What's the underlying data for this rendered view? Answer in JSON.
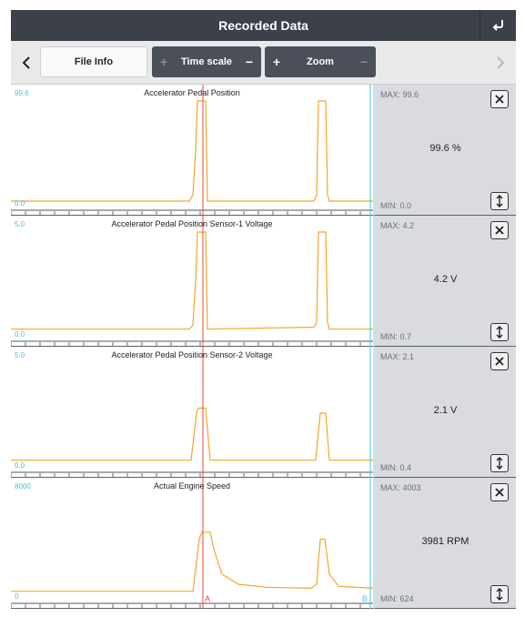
{
  "header": {
    "title": "Recorded Data",
    "back_icon": "return-arrow-icon"
  },
  "toolbar": {
    "file_info_label": "File Info",
    "time_scale_label": "Time scale",
    "zoom_label": "Zoom",
    "plus": "+",
    "minus": "−"
  },
  "colors": {
    "trace": "#f5a623",
    "cursor": "#e84a3a",
    "cursor_b": "#49c4d8",
    "header_bg": "#3c4049",
    "side_bg": "#d9dbe1"
  },
  "panels": [
    {
      "title": "Accelerator Pedal Position",
      "y_max": "99.6",
      "y_min": "0.0",
      "stat_max": "MAX: 99.6",
      "stat_min": "MIN: 0.0",
      "current": "99.6 %",
      "trace": [
        [
          0,
          0
        ],
        [
          196,
          0
        ],
        [
          200,
          0.06
        ],
        [
          203,
          0.5
        ],
        [
          205,
          1
        ],
        [
          214,
          1
        ],
        [
          216,
          0
        ],
        [
          333,
          0
        ],
        [
          336,
          0.06
        ],
        [
          338,
          1
        ],
        [
          346,
          1
        ],
        [
          348,
          0.06
        ],
        [
          350,
          0
        ],
        [
          398,
          0
        ]
      ]
    },
    {
      "title": "Accelerator Pedal Position Sensor-1 Voltage",
      "y_max": "5.0",
      "y_min": "0.0",
      "stat_max": "MAX: 4.2",
      "stat_min": "MIN: 0.7",
      "current": "4.2 V",
      "trace": [
        [
          0,
          0.03
        ],
        [
          196,
          0.03
        ],
        [
          200,
          0.07
        ],
        [
          203,
          0.5
        ],
        [
          205,
          1
        ],
        [
          214,
          1
        ],
        [
          216,
          0.03
        ],
        [
          333,
          0.05
        ],
        [
          336,
          0.1
        ],
        [
          338,
          1
        ],
        [
          346,
          1
        ],
        [
          348,
          0.1
        ],
        [
          350,
          0.03
        ],
        [
          398,
          0.03
        ]
      ]
    },
    {
      "title": "Accelerator Pedal Position Sensor-2 Voltage",
      "y_max": "5.0",
      "y_min": "0.0",
      "stat_max": "MAX: 2.1",
      "stat_min": "MIN: 0.4",
      "current": "2.1 V",
      "trace": [
        [
          0,
          0.03
        ],
        [
          198,
          0.03
        ],
        [
          204,
          0.5
        ],
        [
          206,
          0.55
        ],
        [
          214,
          0.55
        ],
        [
          219,
          0.03
        ],
        [
          335,
          0.03
        ],
        [
          340,
          0.5
        ],
        [
          346,
          0.5
        ],
        [
          350,
          0.03
        ],
        [
          398,
          0.03
        ]
      ]
    },
    {
      "title": "Actual Engine Speed",
      "y_max": "8000",
      "y_min": "0",
      "stat_max": "MAX: 4003",
      "stat_min": "MIN: 624",
      "current": "3981 RPM",
      "trace": [
        [
          0,
          0.03
        ],
        [
          200,
          0.03
        ],
        [
          207,
          0.55
        ],
        [
          210,
          0.62
        ],
        [
          219,
          0.62
        ],
        [
          223,
          0.45
        ],
        [
          232,
          0.2
        ],
        [
          250,
          0.1
        ],
        [
          280,
          0.07
        ],
        [
          330,
          0.06
        ],
        [
          336,
          0.1
        ],
        [
          340,
          0.55
        ],
        [
          345,
          0.55
        ],
        [
          350,
          0.2
        ],
        [
          360,
          0.08
        ],
        [
          398,
          0.06
        ]
      ]
    }
  ],
  "cursors": {
    "a_label": "A",
    "b_label": "B"
  }
}
